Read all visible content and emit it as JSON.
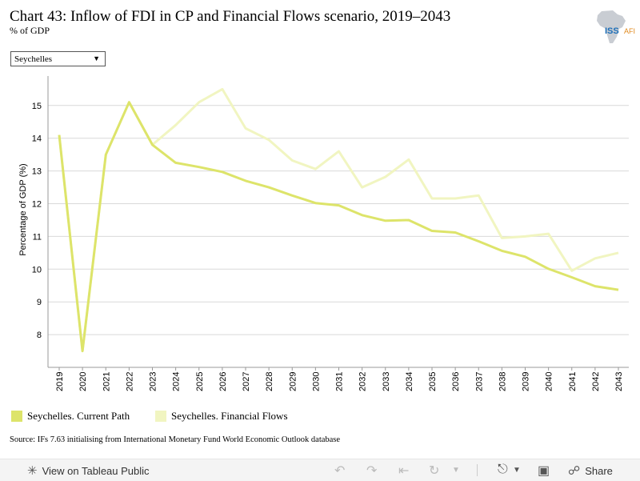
{
  "title": "Chart 43: Inflow of FDI in CP and Financial Flows scenario, 2019–2043",
  "subtitle": "% of GDP",
  "logo": {
    "text_main": "ISS",
    "text_accent": "AFI"
  },
  "country_select": {
    "value": "Seychelles",
    "arrow": "▼"
  },
  "source": "Source: IFs 7.63 initialising from International Monetary Fund World Economic Outlook database",
  "colors": {
    "current_path": "#dde46a",
    "financial_flows": "#f1f5c1",
    "grid": "#d9d9d9",
    "axis": "#999999"
  },
  "chart_data": {
    "type": "line",
    "ylabel": "Percentage of GDP (%)",
    "ylim": [
      7.0,
      15.9
    ],
    "yticks": [
      8,
      9,
      10,
      11,
      12,
      13,
      14,
      15
    ],
    "x": [
      "2019",
      "2020",
      "2021",
      "2022",
      "2023",
      "2024",
      "2025",
      "2026",
      "2027",
      "2028",
      "2029",
      "2030",
      "2031",
      "2032",
      "2033",
      "2034",
      "2035",
      "2036",
      "2037",
      "2038",
      "2039",
      "2040",
      "2041",
      "2042",
      "2043"
    ],
    "series": [
      {
        "name": "Seychelles. Current Path",
        "color": "#dde46a",
        "values": [
          14.1,
          7.5,
          13.5,
          15.1,
          13.8,
          13.25,
          13.12,
          12.97,
          12.7,
          12.5,
          12.25,
          12.02,
          11.95,
          11.65,
          11.48,
          11.5,
          11.17,
          11.12,
          10.85,
          10.56,
          10.38,
          10.01,
          9.75,
          9.48,
          9.37
        ]
      },
      {
        "name": "Seychelles. Financial Flows",
        "color": "#f1f5c1",
        "values": [
          14.1,
          7.5,
          13.5,
          15.1,
          13.8,
          14.4,
          15.1,
          15.5,
          14.3,
          13.95,
          13.32,
          13.06,
          13.6,
          12.5,
          12.82,
          13.35,
          12.16,
          12.16,
          12.25,
          10.95,
          11.0,
          11.08,
          9.95,
          10.33,
          10.5
        ]
      }
    ]
  },
  "footer": {
    "view_label": "View on Tableau Public",
    "share_label": "Share"
  }
}
